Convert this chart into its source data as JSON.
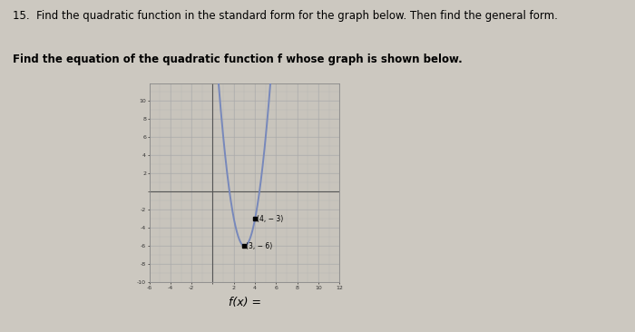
{
  "title_line1": "15.  Find the quadratic function in the standard form for the graph below. Then find the general form.",
  "title_line2": "Find the equation of the quadratic function f whose graph is shown below.",
  "fx_label": "f(x) =",
  "background_color": "#ccc8c0",
  "graph_bg": "#c8c4bc",
  "grid_color": "#aaaaaa",
  "curve_color": "#7788bb",
  "point1": [
    4,
    -3
  ],
  "point2": [
    3,
    -6
  ],
  "point1_label": "(4, − 3)",
  "point2_label": "(3, − 6)",
  "xlim": [
    -6,
    12
  ],
  "ylim": [
    -10,
    12
  ],
  "xtick_vals": [
    -6,
    -4,
    -2,
    0,
    2,
    4,
    6,
    8,
    10,
    12
  ],
  "ytick_vals": [
    -10,
    -8,
    -6,
    -4,
    -2,
    0,
    2,
    4,
    6,
    8,
    10
  ],
  "xtick_labels": [
    "-6",
    "-4",
    "-2",
    "",
    "2",
    "4",
    "6",
    "8",
    "10",
    "12"
  ],
  "ytick_labels": [
    "-10",
    "-8",
    "-6",
    "-4",
    "-2",
    "",
    "2",
    "4",
    "6",
    "8",
    "10"
  ],
  "vertex_x": 3,
  "vertex_y": -6,
  "a": 3
}
